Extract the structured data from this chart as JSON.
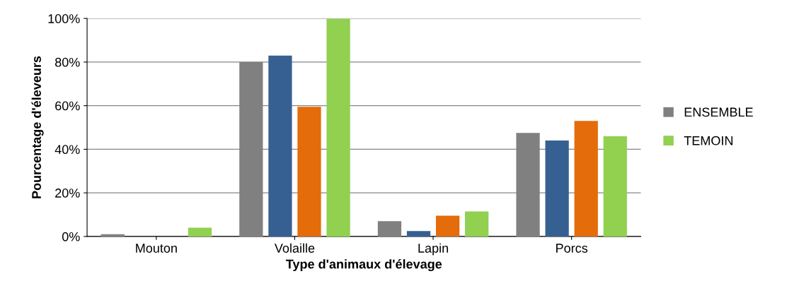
{
  "chart_data": {
    "type": "bar",
    "xlabel": "Type d'animaux d'élevage",
    "ylabel": "Pourcentage d'éleveurs",
    "categories": [
      "Mouton",
      "Volaille",
      "Lapin",
      "Porcs"
    ],
    "series": [
      {
        "name": "ENSEMBLE",
        "color": "#808080",
        "values": [
          1,
          80,
          7,
          47.5
        ]
      },
      {
        "color": "#376092",
        "values": [
          0,
          83,
          2.5,
          44
        ]
      },
      {
        "color": "#e46c0a",
        "values": [
          0,
          59.5,
          9.5,
          53
        ]
      },
      {
        "name": "TEMOIN",
        "color": "#92d050",
        "values": [
          4,
          100,
          11.5,
          46
        ]
      }
    ],
    "ylim": [
      0,
      100
    ],
    "yticks": [
      {
        "value": 0,
        "label": "0%"
      },
      {
        "value": 20,
        "label": "20%"
      },
      {
        "value": 40,
        "label": "40%"
      },
      {
        "value": 60,
        "label": "60%"
      },
      {
        "value": 80,
        "label": "80%"
      },
      {
        "value": 100,
        "label": "100%"
      }
    ],
    "grid": "y",
    "legend": "right"
  }
}
